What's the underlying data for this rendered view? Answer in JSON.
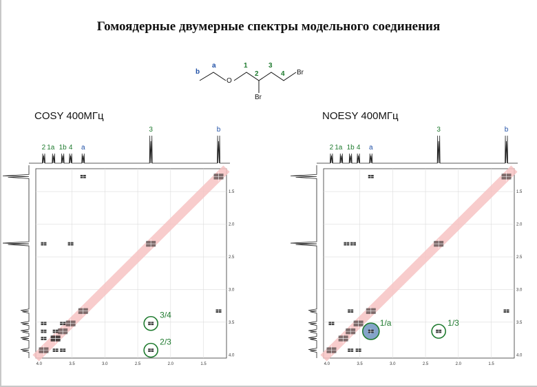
{
  "title": "Гомоядерные двумерные спектры модельного соединения",
  "colors": {
    "diagonal": "#f7c4c4",
    "green_label": "#1e7a2e",
    "blue_label": "#1f4fa6",
    "peak": "#1b1b1b",
    "highlight_fill": "#5c86b7"
  },
  "molecule": {
    "atom_labels": [
      "b",
      "a",
      "O",
      "1",
      "2",
      "Br",
      "3",
      "4",
      "Br"
    ]
  },
  "chart_data": [
    {
      "type": "heatmap",
      "title": "COSY 400МГц",
      "x_tick_labels": [
        "4.0",
        "3.5",
        "3.0",
        "2.5",
        "2.0",
        "1.5"
      ],
      "y_tick_labels": [
        "1.5",
        "2.0",
        "2.5",
        "3.0",
        "3.5",
        "4.0"
      ],
      "xlim": [
        4.05,
        1.15
      ],
      "ylim": [
        1.15,
        4.05
      ],
      "grid": true,
      "projection_labels": [
        {
          "text": "2",
          "ppm": 3.93,
          "color": "green"
        },
        {
          "text": "1a",
          "ppm": 3.78,
          "color": "green"
        },
        {
          "text": "1b",
          "ppm": 3.64,
          "color": "green"
        },
        {
          "text": "4",
          "ppm": 3.52,
          "color": "green"
        },
        {
          "text": "a",
          "ppm": 3.33,
          "color": "blue"
        },
        {
          "text": "3",
          "ppm": 2.3,
          "color": "green"
        },
        {
          "text": "b",
          "ppm": 1.27,
          "color": "blue"
        }
      ],
      "peaks": [
        [
          1.27,
          1.27
        ],
        [
          2.3,
          2.3
        ],
        [
          3.33,
          3.33
        ],
        [
          3.52,
          3.52
        ],
        [
          3.64,
          3.64
        ],
        [
          3.75,
          3.75
        ],
        [
          3.93,
          3.93
        ],
        [
          3.33,
          1.27
        ],
        [
          1.27,
          3.33
        ],
        [
          3.93,
          2.3
        ],
        [
          3.52,
          2.3
        ],
        [
          2.3,
          3.52
        ],
        [
          2.3,
          3.93
        ],
        [
          3.93,
          3.64
        ],
        [
          3.93,
          3.75
        ],
        [
          3.75,
          3.64
        ],
        [
          3.64,
          3.93
        ],
        [
          3.75,
          3.93
        ],
        [
          3.93,
          3.52
        ],
        [
          3.64,
          3.52
        ],
        [
          3.75,
          3.75
        ]
      ],
      "annotations": [
        {
          "text": "3/4",
          "x": 2.3,
          "y": 3.52
        },
        {
          "text": "2/3",
          "x": 2.3,
          "y": 3.93
        }
      ]
    },
    {
      "type": "heatmap",
      "title": "NOESY 400МГц",
      "x_tick_labels": [
        "4.0",
        "3.5",
        "3.0",
        "2.5",
        "2.0",
        "1.5"
      ],
      "y_tick_labels": [
        "1.5",
        "2.0",
        "2.5",
        "3.0",
        "3.5",
        "4.0"
      ],
      "xlim": [
        4.05,
        1.15
      ],
      "ylim": [
        1.15,
        4.05
      ],
      "grid": true,
      "projection_labels": [
        {
          "text": "2",
          "ppm": 3.93,
          "color": "green"
        },
        {
          "text": "1a",
          "ppm": 3.78,
          "color": "green"
        },
        {
          "text": "1b",
          "ppm": 3.64,
          "color": "green"
        },
        {
          "text": "4",
          "ppm": 3.52,
          "color": "green"
        },
        {
          "text": "a",
          "ppm": 3.33,
          "color": "blue"
        },
        {
          "text": "3",
          "ppm": 2.3,
          "color": "green"
        },
        {
          "text": "b",
          "ppm": 1.27,
          "color": "blue"
        }
      ],
      "peaks": [
        [
          1.27,
          1.27
        ],
        [
          2.3,
          2.3
        ],
        [
          3.33,
          3.33
        ],
        [
          3.52,
          3.52
        ],
        [
          3.64,
          3.64
        ],
        [
          3.75,
          3.75
        ],
        [
          3.93,
          3.93
        ],
        [
          3.33,
          1.27
        ],
        [
          1.27,
          3.33
        ],
        [
          3.7,
          2.3
        ],
        [
          3.6,
          2.3
        ],
        [
          2.3,
          3.64
        ],
        [
          3.33,
          3.64
        ],
        [
          3.64,
          3.33
        ],
        [
          3.93,
          3.52
        ],
        [
          3.52,
          3.93
        ],
        [
          3.64,
          3.93
        ]
      ],
      "highlight": {
        "x": 3.33,
        "y": 3.64
      },
      "annotations": [
        {
          "text": "1/a",
          "x": 3.33,
          "y": 3.64
        },
        {
          "text": "1/3",
          "x": 2.3,
          "y": 3.64
        }
      ]
    }
  ]
}
